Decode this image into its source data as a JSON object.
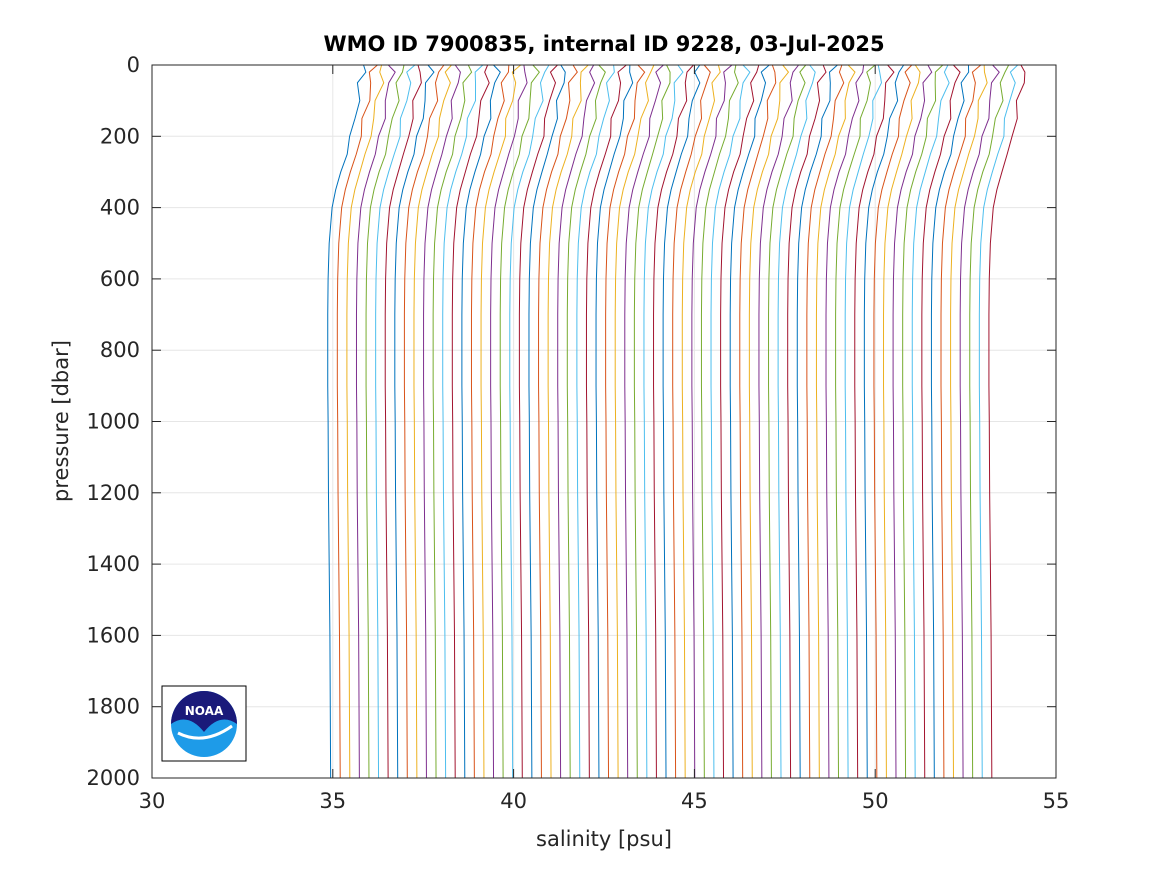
{
  "chart_data": {
    "type": "line",
    "title": "WMO ID 7900835, internal ID 9228, 03-Jul-2025",
    "xlabel": "salinity [psu]",
    "ylabel": "pressure [dbar]",
    "xlim": [
      30,
      55
    ],
    "ylim": [
      0,
      2000
    ],
    "y_reversed": true,
    "grid": true,
    "x_ticks": [
      "30",
      "35",
      "40",
      "45",
      "50",
      "55"
    ],
    "y_ticks": [
      "0",
      "200",
      "400",
      "600",
      "800",
      "1000",
      "1200",
      "1400",
      "1600",
      "1800",
      "2000"
    ],
    "profile_pressure": [
      0,
      20,
      50,
      100,
      150,
      200,
      250,
      300,
      350,
      400,
      500,
      600,
      700,
      800,
      900,
      1000,
      1200,
      1400,
      1600,
      1800,
      2000
    ],
    "reference_profile_salinity": [
      35.85,
      35.83,
      35.78,
      35.7,
      35.6,
      35.5,
      35.38,
      35.22,
      35.08,
      34.98,
      34.9,
      34.87,
      34.86,
      34.86,
      34.86,
      34.87,
      34.88,
      34.9,
      34.92,
      34.93,
      34.94
    ],
    "profile_count": 70,
    "profile_offset_step_psu": 0.265,
    "series_colors": [
      "#0072BD",
      "#D95319",
      "#EDB120",
      "#7E2F8E",
      "#77AC30",
      "#4DBEEE",
      "#A2142F"
    ]
  },
  "logo": {
    "name": "NOAA",
    "text": "NOAA",
    "colors": {
      "dark_blue": "#1a1a7a",
      "light_blue": "#1e9be8"
    }
  }
}
